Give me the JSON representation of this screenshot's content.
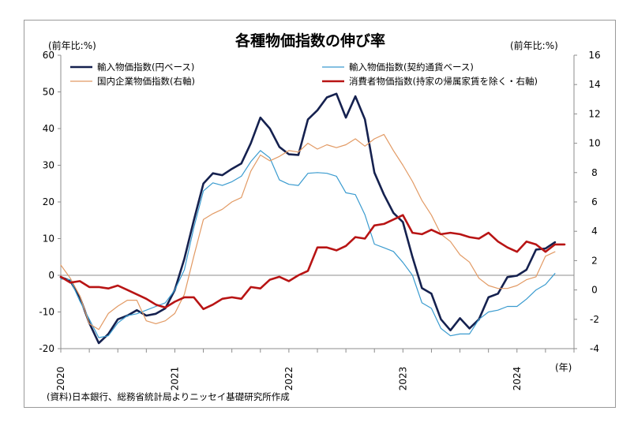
{
  "chart_data": {
    "type": "line",
    "title": "各種物価指数の伸び率",
    "left_unit": "(前年比:%)",
    "right_unit": "(前年比:%)",
    "x_unit": "(年)",
    "source": "(資料)日本銀行、総務省統計局よりニッセイ基礎研究所作成",
    "y_left": {
      "min": -20,
      "max": 60,
      "step": 10,
      "ticks": [
        "-20",
        "-10",
        "0",
        "10",
        "20",
        "30",
        "40",
        "50",
        "60"
      ]
    },
    "y_right": {
      "min": -4,
      "max": 16,
      "step": 2,
      "ticks": [
        "-4",
        "-2",
        "0",
        "2",
        "4",
        "6",
        "8",
        "10",
        "12",
        "14",
        "16"
      ]
    },
    "x_ticks": [
      {
        "label": "2020",
        "t": 0
      },
      {
        "label": "2021",
        "t": 12
      },
      {
        "label": "2022",
        "t": 24
      },
      {
        "label": "2023",
        "t": 36
      },
      {
        "label": "2024",
        "t": 48
      }
    ],
    "x_range": [
      0,
      54
    ],
    "grid": false,
    "series": [
      {
        "name": "輸入物価指数(円ベース)",
        "axis": "left",
        "color": "#15214f",
        "width": 2.6,
        "values": [
          -0.5,
          -1.5,
          -6,
          -13,
          -18.5,
          -16,
          -12,
          -11,
          -9.5,
          -11,
          -10.5,
          -9,
          -4,
          4.5,
          15,
          25,
          27.8,
          27.3,
          29,
          30.5,
          36,
          43,
          40,
          35,
          33,
          32.8,
          42.5,
          45,
          48.5,
          49.5,
          43,
          48.8,
          42.5,
          28,
          22,
          17,
          14.5,
          5,
          -3.5,
          -5,
          -12,
          -15,
          -11.7,
          -14.5,
          -12,
          -6,
          -5,
          -0.5,
          -0.1,
          1.5,
          7,
          7.3,
          9
        ]
      },
      {
        "name": "輸入物価指数(契約通貨ベース)",
        "axis": "left",
        "color": "#3a9bcf",
        "width": 1.2,
        "values": [
          -1,
          -1.2,
          -7,
          -12,
          -17,
          -16.5,
          -13,
          -11,
          -10.5,
          -9.5,
          -8.5,
          -7.5,
          -4,
          1.5,
          13,
          23,
          25.2,
          24.5,
          25.5,
          27,
          31,
          34,
          32,
          26,
          24.8,
          24.5,
          27.8,
          28,
          27.8,
          27,
          22.5,
          22,
          16.5,
          8.5,
          7.5,
          6.5,
          3.5,
          0,
          -7.5,
          -9,
          -14.5,
          -16.5,
          -16,
          -16,
          -12,
          -10,
          -9.5,
          -8.5,
          -8.5,
          -6.5,
          -4,
          -2.5,
          0.5
        ]
      },
      {
        "name": "国内企業物価指数(右軸)",
        "axis": "right",
        "color": "#e29a64",
        "width": 1.2,
        "values": [
          1.7,
          0.8,
          -0.4,
          -2.3,
          -2.7,
          -1.6,
          -1.1,
          -0.7,
          -0.7,
          -2.1,
          -2.3,
          -2.1,
          -1.6,
          -0.3,
          2.3,
          4.8,
          5.2,
          5.5,
          6,
          6.3,
          8.1,
          9.2,
          8.8,
          9.1,
          9.5,
          9.4,
          10,
          9.6,
          9.9,
          9.7,
          9.9,
          10.3,
          9.8,
          10.3,
          10.6,
          9.5,
          8.5,
          7.4,
          6.1,
          5.1,
          3.8,
          3.3,
          2.4,
          1.9,
          0.8,
          0.3,
          0.1,
          0.1,
          0.3,
          0.7,
          0.9,
          2.3,
          2.6
        ]
      },
      {
        "name": "消費者物価指数(持家の帰属家賃を除く・右軸)",
        "axis": "right",
        "color": "#b81414",
        "width": 2.6,
        "values": [
          0.9,
          0.5,
          0.6,
          0.2,
          0.2,
          0.1,
          0.3,
          0,
          -0.3,
          -0.6,
          -1,
          -1.2,
          -0.8,
          -0.5,
          -0.5,
          -1.3,
          -1,
          -0.6,
          -0.5,
          -0.6,
          0.2,
          0.1,
          0.7,
          0.9,
          0.6,
          1,
          1.3,
          2.9,
          2.9,
          2.7,
          3,
          3.6,
          3.5,
          4.4,
          4.5,
          4.8,
          5.1,
          3.9,
          3.8,
          4.1,
          3.8,
          3.9,
          3.8,
          3.6,
          3.5,
          3.9,
          3.3,
          2.9,
          2.6,
          3.3,
          3.1,
          2.6,
          3.1,
          3.1
        ]
      }
    ]
  }
}
